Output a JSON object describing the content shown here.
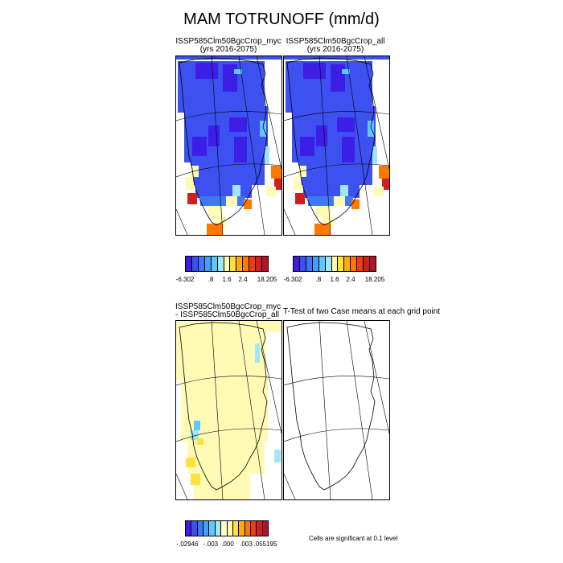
{
  "title": "MAM TOTRUNOFF (mm/d)",
  "panels": [
    {
      "title_line1": "ISSP585Clm50BgcCrop_myc",
      "title_line2": "(yrs 2016-2075)"
    },
    {
      "title_line1": "ISSP585Clm50BgcCrop_all",
      "title_line2": "(yrs 2016-2075)"
    },
    {
      "title_line1": "ISSP585Clm50BgcCrop_myc",
      "title_line2": "- ISSP585Clm50BgcCrop_all"
    },
    {
      "title_line1": "T-Test of two Case means at each grid point",
      "title_line2": ""
    }
  ],
  "colorbar_top": {
    "colors": [
      "#3d1ee6",
      "#3d50f0",
      "#3f78f5",
      "#41a0fa",
      "#5fc8fa",
      "#a0e6f5",
      "#fffab4",
      "#ffe13c",
      "#ffaa14",
      "#ff7800",
      "#f03c14",
      "#d21e1e",
      "#b41428"
    ],
    "labels": [
      "-6.302",
      ".8",
      "1.6",
      "2.4",
      "18.205"
    ]
  },
  "colorbar_bottom": {
    "colors": [
      "#3d1ee6",
      "#3d50f0",
      "#3f78f5",
      "#41a0fa",
      "#5fc8fa",
      "#a0e6f5",
      "#fffac8",
      "#fffab4",
      "#ffe13c",
      "#ffaa14",
      "#ff7800",
      "#f03c14",
      "#d21e1e",
      "#b41428"
    ],
    "labels": [
      "-.02946",
      "-.003",
      ".000",
      ".003",
      ".055195"
    ]
  },
  "note": "Cells are significant at 0.1 level"
}
